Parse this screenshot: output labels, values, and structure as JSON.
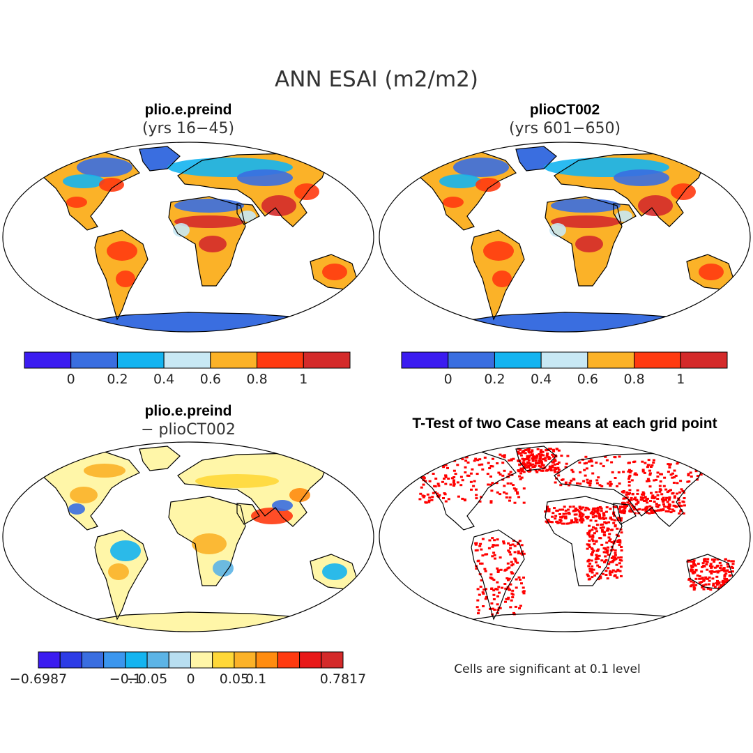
{
  "figure": {
    "title": "ANN ESAI (m2/m2)",
    "note": "Cells are significant at 0.1 level"
  },
  "panels": [
    {
      "id": "p1",
      "title": "plio.e.preind",
      "subtitle": "(yrs 16−45)"
    },
    {
      "id": "p2",
      "title": "plioCT002",
      "subtitle": "(yrs 601−650)"
    },
    {
      "id": "p3",
      "title": "plio.e.preind",
      "subtitle": "− plioCT002"
    },
    {
      "id": "p4",
      "title": "T-Test of two Case means at each grid point",
      "subtitle": ""
    }
  ],
  "colorbars": {
    "abs": {
      "colors": [
        "#3b1cf0",
        "#3a6ee0",
        "#14b4f0",
        "#c8e8f4",
        "#fbb228",
        "#ff3a10",
        "#d42a2a"
      ],
      "tick_labels": [
        "0",
        "0.2",
        "0.4",
        "0.6",
        "0.8",
        "1"
      ]
    },
    "diff": {
      "colors": [
        "#3b1cf0",
        "#2d3ce6",
        "#3a6ee0",
        "#3b96ee",
        "#14b4f0",
        "#5cb4e6",
        "#b8def0",
        "#fff6a8",
        "#ffd838",
        "#fbb228",
        "#ff8c10",
        "#ff3a10",
        "#e81818",
        "#d42a2a"
      ],
      "tick_labels": [
        "−0.6987",
        "−0.1",
        "−0.05",
        "0",
        "0.05",
        "0.1",
        "0.7817"
      ]
    },
    "sig": {
      "color": "#ff0000"
    }
  },
  "chart_data": [
    {
      "type": "heatmap",
      "title": "plio.e.preind (yrs 16−45)",
      "variable": "ESAI",
      "units": "m2/m2",
      "levels": [
        0,
        0.2,
        0.4,
        0.6,
        0.8,
        1
      ]
    },
    {
      "type": "heatmap",
      "title": "plioCT002 (yrs 601−650)",
      "variable": "ESAI",
      "units": "m2/m2",
      "levels": [
        0,
        0.2,
        0.4,
        0.6,
        0.8,
        1
      ]
    },
    {
      "type": "heatmap",
      "title": "plio.e.preind − plioCT002",
      "variable": "ESAI difference",
      "units": "m2/m2",
      "range": [
        -0.6987,
        0.7817
      ],
      "levels": [
        -0.1,
        -0.05,
        0,
        0.05,
        0.1
      ]
    },
    {
      "type": "heatmap",
      "title": "T-Test of two Case means at each grid point",
      "significance_level": 0.1
    }
  ]
}
